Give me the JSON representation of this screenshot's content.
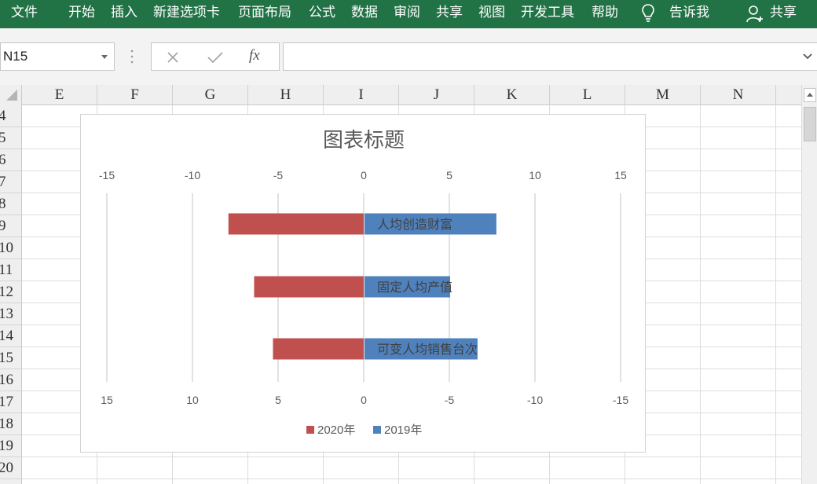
{
  "ribbon": {
    "tabs": [
      "文件",
      "开始",
      "插入",
      "新建选项卡",
      "页面布局",
      "公式",
      "数据",
      "审阅",
      "共享",
      "视图",
      "开发工具",
      "帮助"
    ],
    "tell_me": "告诉我",
    "share": "共享"
  },
  "formula_bar": {
    "name_box": "N15",
    "fx": "fx",
    "value": ""
  },
  "grid": {
    "columns": [
      "E",
      "F",
      "G",
      "H",
      "I",
      "J",
      "K",
      "L",
      "M",
      "N"
    ],
    "rows": [
      "4",
      "5",
      "6",
      "7",
      "8",
      "9",
      "10",
      "11",
      "12",
      "13",
      "14",
      "15",
      "16",
      "17",
      "18",
      "19",
      "20"
    ]
  },
  "colors": {
    "ribbon": "#217346",
    "series_2020": "#C0504D",
    "series_2019": "#4F81BD"
  },
  "chart_data": {
    "type": "bar",
    "orientation": "horizontal",
    "title": "图表标题",
    "categories": [
      "人均创造财富",
      "固定人均产值",
      "可变人均销售台次"
    ],
    "series": [
      {
        "name": "2020年",
        "values": [
          7.9,
          6.4,
          5.3
        ],
        "color": "#C0504D",
        "direction": "left"
      },
      {
        "name": "2019年",
        "values": [
          7.7,
          5.0,
          6.6
        ],
        "color": "#4F81BD",
        "direction": "right"
      }
    ],
    "top_axis_ticks": [
      "-15",
      "-10",
      "-5",
      "0",
      "5",
      "10",
      "15"
    ],
    "bottom_axis_ticks": [
      "15",
      "10",
      "5",
      "0",
      "-5",
      "-10",
      "-15"
    ],
    "xlim": [
      -15,
      15
    ],
    "gridlines": true,
    "legend_position": "bottom"
  }
}
